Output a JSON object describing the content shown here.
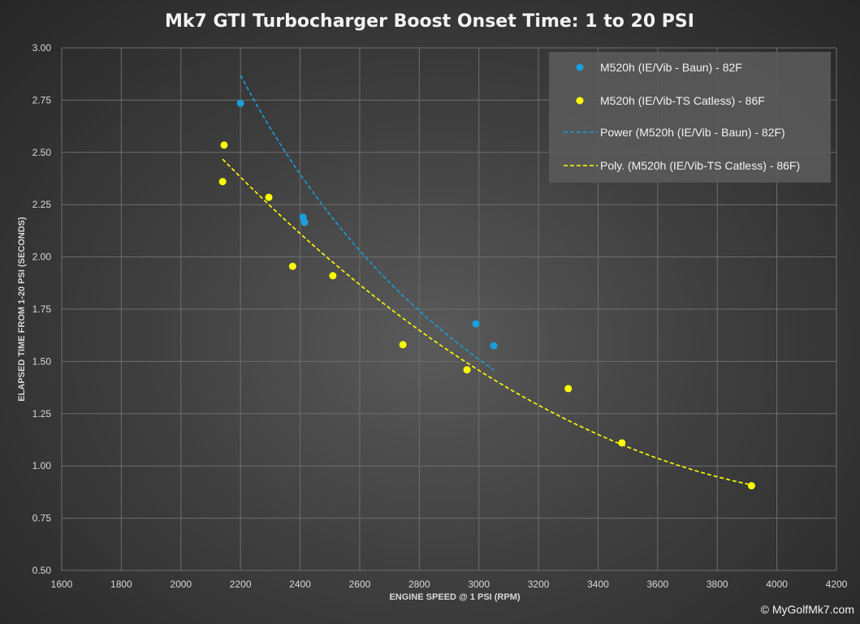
{
  "chart_data": {
    "type": "scatter",
    "title": "Mk7 GTI Turbocharger Boost Onset Time: 1 to 20 PSI",
    "xlabel": "ENGINE SPEED @ 1 PSI (RPM)",
    "ylabel": "ELAPSED TIME FROM 1-20 PSI (SECONDS)",
    "xlim": [
      1600,
      4200
    ],
    "ylim": [
      0.5,
      3.0
    ],
    "x_ticks": [
      "1600",
      "1800",
      "2000",
      "2200",
      "2400",
      "2600",
      "2800",
      "3000",
      "3200",
      "3400",
      "3600",
      "3800",
      "4000",
      "4200"
    ],
    "y_ticks": [
      "0.50",
      "0.75",
      "1.00",
      "1.25",
      "1.50",
      "1.75",
      "2.00",
      "2.25",
      "2.50",
      "2.75",
      "3.00"
    ],
    "grid": true,
    "legend_position": "top-right",
    "series": [
      {
        "name": "M520h (IE/Vib - Baun) - 82F",
        "color": "#1a9fdc",
        "points": [
          [
            2200,
            2.735
          ],
          [
            2410,
            2.19
          ],
          [
            2415,
            2.165
          ],
          [
            2990,
            1.68
          ],
          [
            3050,
            1.575
          ]
        ]
      },
      {
        "name": "M520h (IE/Vib-TS Catless) - 86F",
        "color": "#ffff00",
        "points": [
          [
            2140,
            2.36
          ],
          [
            2145,
            2.535
          ],
          [
            2295,
            2.285
          ],
          [
            2375,
            1.955
          ],
          [
            2510,
            1.91
          ],
          [
            2745,
            1.58
          ],
          [
            2960,
            1.46
          ],
          [
            3300,
            1.37
          ],
          [
            3480,
            1.11
          ],
          [
            3915,
            0.905
          ]
        ]
      }
    ],
    "trendlines": [
      {
        "name": "Power (M520h (IE/Vib - Baun) - 82F)",
        "color": "#1a9fdc",
        "type": "power",
        "x_range": [
          2200,
          3050
        ],
        "a": 23800000,
        "b": -2.07
      },
      {
        "name": "Poly. (M520h (IE/Vib-TS Catless) - 86F)",
        "color": "#ffff00",
        "type": "polynomial",
        "x_range": [
          2140,
          3915
        ],
        "coefficients": [
          7.07,
          -0.002846,
          3.25e-07
        ]
      }
    ]
  },
  "credit": "© MyGolfMk7.com"
}
